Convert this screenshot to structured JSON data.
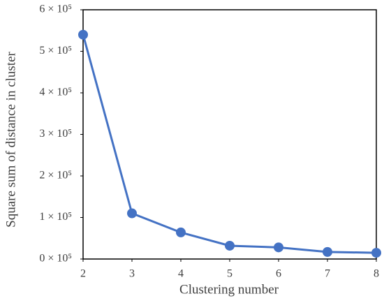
{
  "chart_data": {
    "type": "line",
    "x_label": "Clustering number",
    "y_label": "Square sum of distance in cluster",
    "x": [
      2,
      3,
      4,
      5,
      6,
      7,
      8
    ],
    "series": [
      {
        "name": "Square sum of distance",
        "color": "#4472c4",
        "values": [
          540000,
          110000,
          64000,
          32000,
          28000,
          17000,
          15000
        ]
      }
    ],
    "xlim": [
      2,
      8
    ],
    "xticks": [
      2,
      3,
      4,
      5,
      6,
      7,
      8
    ],
    "ylim": [
      0,
      600000
    ],
    "yticks": [
      {
        "value": 0,
        "label": "0 × 10⁵"
      },
      {
        "value": 100000,
        "label": "1 × 10⁵"
      },
      {
        "value": 200000,
        "label": "2 × 10⁵"
      },
      {
        "value": 300000,
        "label": "3 × 10⁵"
      },
      {
        "value": 400000,
        "label": "4 × 10⁵"
      },
      {
        "value": 500000,
        "label": "5 × 10⁵"
      },
      {
        "value": 600000,
        "label": "6 × 10⁵"
      }
    ],
    "grid": false
  }
}
